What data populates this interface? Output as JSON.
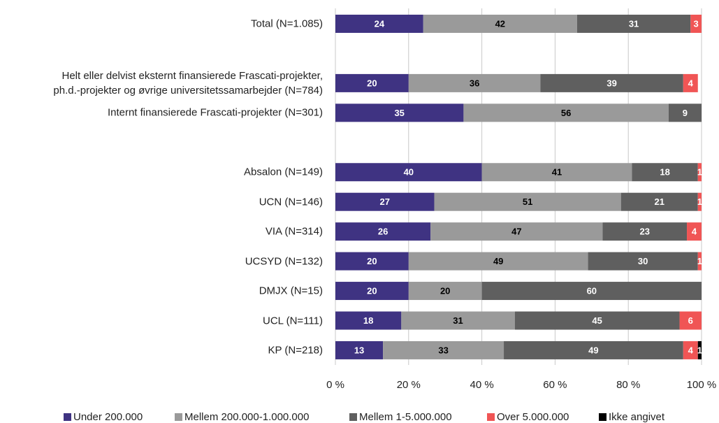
{
  "chart_data": {
    "type": "stacked-barh",
    "categories": [
      "Total (N=1.085)",
      null,
      "Helt eller delvist eksternt finansierede Frascati-projekter,\nph.d.-projekter og øvrige universitetssamarbejder (N=784)",
      "Internt finansierede Frascati-projekter (N=301)",
      null,
      "Absalon (N=149)",
      "UCN (N=146)",
      "VIA (N=314)",
      "UCSYD (N=132)",
      "DMJX (N=15)",
      "UCL (N=111)",
      "KP (N=218)"
    ],
    "series": [
      {
        "name": "Under 200.000",
        "color": "#3f3382",
        "label_color": "#ffffff",
        "values": [
          24,
          null,
          20,
          35,
          null,
          40,
          27,
          26,
          20,
          20,
          18,
          13
        ]
      },
      {
        "name": "Mellem 200.000-1.000.000",
        "color": "#9a9a9a",
        "label_color": "#000000",
        "values": [
          42,
          null,
          36,
          56,
          null,
          41,
          51,
          47,
          49,
          20,
          31,
          33
        ]
      },
      {
        "name": "Mellem 1-5.000.000",
        "color": "#5f5f5f",
        "label_color": "#ffffff",
        "values": [
          31,
          null,
          39,
          9,
          null,
          18,
          21,
          23,
          30,
          60,
          45,
          49
        ]
      },
      {
        "name": "Over 5.000.000",
        "color": "#f05555",
        "label_color": "#ffffff",
        "values": [
          3,
          null,
          4,
          null,
          null,
          1,
          1,
          4,
          1,
          null,
          6,
          4
        ]
      },
      {
        "name": "Ikke angivet",
        "color": "#000000",
        "label_color": "#ffffff",
        "values": [
          null,
          null,
          null,
          null,
          null,
          null,
          null,
          null,
          null,
          null,
          null,
          1
        ]
      }
    ],
    "xlim": [
      0,
      100
    ],
    "xticks": [
      {
        "value": 0,
        "label": "0 %"
      },
      {
        "value": 20,
        "label": "20 %"
      },
      {
        "value": 40,
        "label": "40 %"
      },
      {
        "value": 60,
        "label": "60 %"
      },
      {
        "value": 80,
        "label": "80 %"
      },
      {
        "value": 100,
        "label": "100 %"
      }
    ],
    "grid": true,
    "legend": "bottom"
  }
}
